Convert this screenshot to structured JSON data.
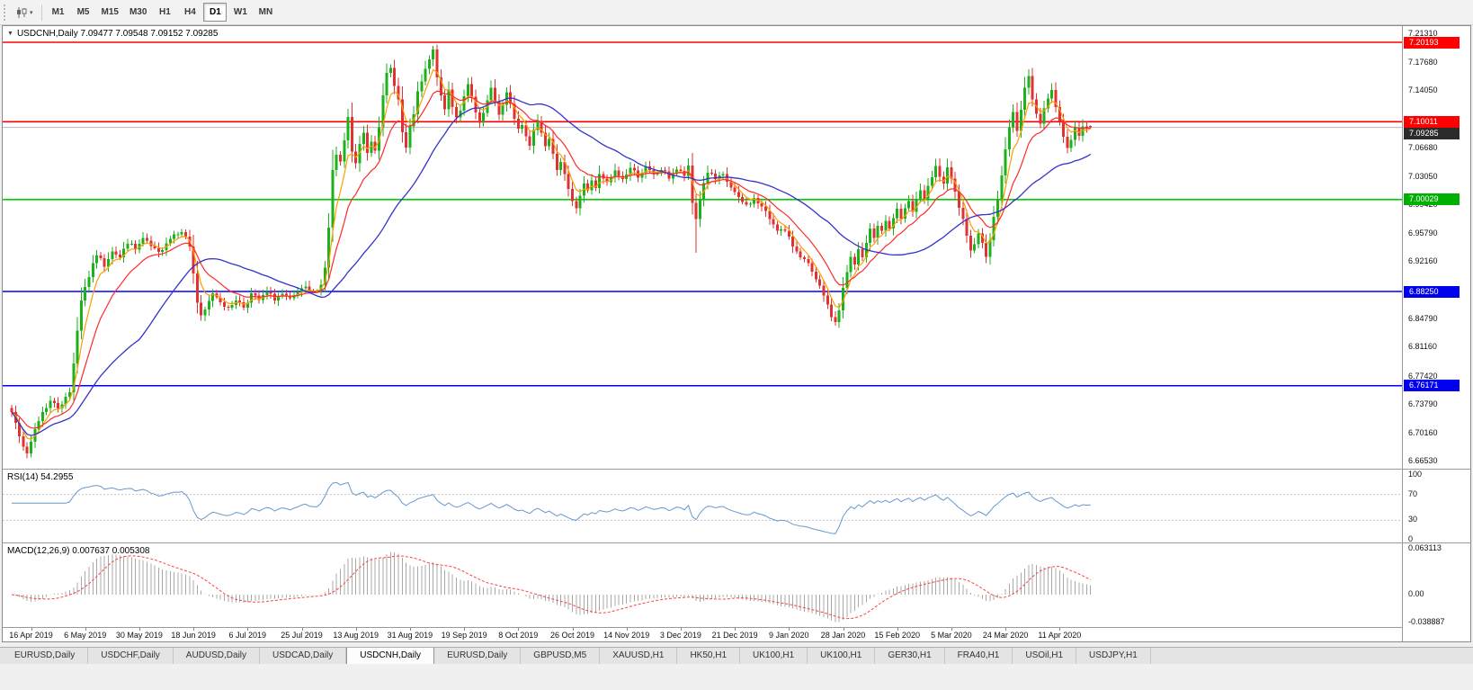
{
  "colors": {
    "up": "#1cb21c",
    "down": "#e03232",
    "ma_fast": "#ff9d00",
    "ma_mid": "#ff2a2a",
    "ma_slow": "#3434cc",
    "rsi_line": "#6699cc",
    "rsi_levels": "#c8c8c8",
    "macd_hist": "#a8a8a8",
    "macd_signal": "#ff4040",
    "current_line": "#b4b4b4"
  },
  "toolbar": {
    "timeframes": [
      "M1",
      "M5",
      "M15",
      "M30",
      "H1",
      "H4",
      "D1",
      "W1",
      "MN"
    ],
    "selected": "D1"
  },
  "chart": {
    "collapse_icon": "▼",
    "title_full": "USDCNH,Daily 7.09477 7.09548 7.09152 7.09285"
  },
  "price_axis": {
    "ticks": [
      "7.21310",
      "7.17680",
      "7.14050",
      "7.06680",
      "7.03050",
      "6.99420",
      "6.95790",
      "6.92160",
      "6.84790",
      "6.81160",
      "6.77420",
      "6.73790",
      "6.70160",
      "6.66530"
    ],
    "badges": [
      {
        "text": "7.20193",
        "bg": "#ff0000"
      },
      {
        "text": "7.10011",
        "bg": "#ff0000"
      },
      {
        "text": "7.09285",
        "bg": "#2b2b2b"
      },
      {
        "text": "7.00029",
        "bg": "#00b000"
      },
      {
        "text": "6.88250",
        "bg": "#0000ee"
      },
      {
        "text": "6.76171",
        "bg": "#0000ee"
      }
    ]
  },
  "indicators": {
    "rsi": {
      "text": "RSI(14) 54.2955",
      "axis": [
        "100",
        "70",
        "30",
        "0"
      ]
    },
    "macd": {
      "text": "MACD(12,26,9) 0.007637 0.005308",
      "axis": [
        "0.063113",
        "0.00",
        "-0.038887"
      ]
    }
  },
  "tabs": [
    {
      "label": "EURUSD,Daily"
    },
    {
      "label": "USDCHF,Daily"
    },
    {
      "label": "AUDUSD,Daily"
    },
    {
      "label": "USDCAD,Daily"
    },
    {
      "label": "USDCNH,Daily",
      "active": true
    },
    {
      "label": "EURUSD,Daily"
    },
    {
      "label": "GBPUSD,M5"
    },
    {
      "label": "XAUUSD,H1"
    },
    {
      "label": "HK50,H1"
    },
    {
      "label": "UK100,H1"
    },
    {
      "label": "UK100,H1"
    },
    {
      "label": "GER30,H1"
    },
    {
      "label": "FRA40,H1"
    },
    {
      "label": "USOil,H1"
    },
    {
      "label": "USDJPY,H1"
    }
  ],
  "chart_data": {
    "type": "candlestick",
    "symbol": "USDCNH",
    "timeframe": "Daily",
    "last_bar_ohlc": {
      "open": 7.09477,
      "high": 7.09548,
      "low": 7.09152,
      "close": 7.09285
    },
    "price_axis_range": [
      6.6653,
      7.2131
    ],
    "bars": 280,
    "close_waypoints": [
      [
        0,
        6.728
      ],
      [
        2,
        6.7
      ],
      [
        4,
        6.672
      ],
      [
        6,
        6.706
      ],
      [
        8,
        6.728
      ],
      [
        10,
        6.742
      ],
      [
        12,
        6.734
      ],
      [
        14,
        6.746
      ],
      [
        15,
        6.753
      ],
      [
        16,
        6.792
      ],
      [
        17,
        6.833
      ],
      [
        18,
        6.872
      ],
      [
        19,
        6.888
      ],
      [
        20,
        6.902
      ],
      [
        21,
        6.916
      ],
      [
        22,
        6.93
      ],
      [
        24,
        6.916
      ],
      [
        26,
        6.936
      ],
      [
        28,
        6.926
      ],
      [
        30,
        6.946
      ],
      [
        32,
        6.936
      ],
      [
        34,
        6.95
      ],
      [
        36,
        6.94
      ],
      [
        38,
        6.931
      ],
      [
        40,
        6.946
      ],
      [
        42,
        6.956
      ],
      [
        44,
        6.961
      ],
      [
        46,
        6.941
      ],
      [
        47,
        6.906
      ],
      [
        48,
        6.868
      ],
      [
        49,
        6.849
      ],
      [
        50,
        6.858
      ],
      [
        52,
        6.881
      ],
      [
        54,
        6.871
      ],
      [
        56,
        6.859
      ],
      [
        58,
        6.873
      ],
      [
        60,
        6.863
      ],
      [
        62,
        6.879
      ],
      [
        64,
        6.871
      ],
      [
        66,
        6.881
      ],
      [
        68,
        6.873
      ],
      [
        70,
        6.879
      ],
      [
        72,
        6.871
      ],
      [
        74,
        6.881
      ],
      [
        76,
        6.886
      ],
      [
        78,
        6.881
      ],
      [
        80,
        6.891
      ],
      [
        81,
        6.914
      ],
      [
        82,
        6.963
      ],
      [
        83,
        7.038
      ],
      [
        84,
        7.056
      ],
      [
        85,
        7.046
      ],
      [
        86,
        7.076
      ],
      [
        87,
        7.104
      ],
      [
        88,
        7.062
      ],
      [
        89,
        7.046
      ],
      [
        90,
        7.07
      ],
      [
        91,
        7.086
      ],
      [
        92,
        7.061
      ],
      [
        93,
        7.076
      ],
      [
        94,
        7.066
      ],
      [
        95,
        7.096
      ],
      [
        96,
        7.131
      ],
      [
        97,
        7.161
      ],
      [
        98,
        7.168
      ],
      [
        99,
        7.149
      ],
      [
        100,
        7.128
      ],
      [
        101,
        7.086
      ],
      [
        102,
        7.066
      ],
      [
        103,
        7.091
      ],
      [
        104,
        7.111
      ],
      [
        105,
        7.136
      ],
      [
        106,
        7.151
      ],
      [
        107,
        7.166
      ],
      [
        108,
        7.179
      ],
      [
        109,
        7.191
      ],
      [
        110,
        7.159
      ],
      [
        111,
        7.131
      ],
      [
        112,
        7.116
      ],
      [
        113,
        7.141
      ],
      [
        114,
        7.121
      ],
      [
        115,
        7.106
      ],
      [
        116,
        7.116
      ],
      [
        117,
        7.131
      ],
      [
        118,
        7.146
      ],
      [
        119,
        7.131
      ],
      [
        120,
        7.111
      ],
      [
        121,
        7.096
      ],
      [
        122,
        7.111
      ],
      [
        123,
        7.126
      ],
      [
        124,
        7.141
      ],
      [
        125,
        7.126
      ],
      [
        126,
        7.111
      ],
      [
        127,
        7.121
      ],
      [
        128,
        7.136
      ],
      [
        129,
        7.121
      ],
      [
        130,
        7.106
      ],
      [
        131,
        7.091
      ],
      [
        132,
        7.096
      ],
      [
        133,
        7.081
      ],
      [
        134,
        7.071
      ],
      [
        135,
        7.091
      ],
      [
        136,
        7.101
      ],
      [
        137,
        7.086
      ],
      [
        138,
        7.071
      ],
      [
        139,
        7.081
      ],
      [
        140,
        7.061
      ],
      [
        141,
        7.041
      ],
      [
        142,
        7.051
      ],
      [
        143,
        7.031
      ],
      [
        144,
        7.011
      ],
      [
        145,
        7.001
      ],
      [
        146,
        6.991
      ],
      [
        147,
        7.006
      ],
      [
        148,
        7.021
      ],
      [
        149,
        7.011
      ],
      [
        150,
        7.026
      ],
      [
        151,
        7.016
      ],
      [
        152,
        7.031
      ],
      [
        154,
        7.021
      ],
      [
        156,
        7.036
      ],
      [
        158,
        7.026
      ],
      [
        160,
        7.041
      ],
      [
        162,
        7.031
      ],
      [
        164,
        7.041
      ],
      [
        166,
        7.031
      ],
      [
        168,
        7.039
      ],
      [
        170,
        7.029
      ],
      [
        172,
        7.039
      ],
      [
        174,
        7.031
      ],
      [
        175,
        7.041
      ],
      [
        176,
        6.996
      ],
      [
        177,
        6.976
      ],
      [
        178,
        7.001
      ],
      [
        179,
        7.021
      ],
      [
        180,
        7.036
      ],
      [
        182,
        7.026
      ],
      [
        184,
        7.031
      ],
      [
        186,
        7.016
      ],
      [
        188,
        7.001
      ],
      [
        190,
        6.993
      ],
      [
        192,
        7.001
      ],
      [
        194,
        6.991
      ],
      [
        196,
        6.976
      ],
      [
        198,
        6.963
      ],
      [
        200,
        6.959
      ],
      [
        202,
        6.941
      ],
      [
        204,
        6.929
      ],
      [
        206,
        6.916
      ],
      [
        208,
        6.896
      ],
      [
        210,
        6.879
      ],
      [
        211,
        6.863
      ],
      [
        212,
        6.851
      ],
      [
        213,
        6.843
      ],
      [
        214,
        6.859
      ],
      [
        215,
        6.886
      ],
      [
        216,
        6.906
      ],
      [
        217,
        6.926
      ],
      [
        218,
        6.916
      ],
      [
        219,
        6.936
      ],
      [
        220,
        6.926
      ],
      [
        221,
        6.946
      ],
      [
        222,
        6.961
      ],
      [
        223,
        6.951
      ],
      [
        224,
        6.969
      ],
      [
        225,
        6.959
      ],
      [
        226,
        6.973
      ],
      [
        227,
        6.963
      ],
      [
        228,
        6.976
      ],
      [
        229,
        6.986
      ],
      [
        230,
        6.973
      ],
      [
        231,
        6.991
      ],
      [
        232,
        7.001
      ],
      [
        233,
        6.986
      ],
      [
        234,
        7.001
      ],
      [
        235,
        7.013
      ],
      [
        236,
        6.999
      ],
      [
        237,
        7.016
      ],
      [
        238,
        7.029
      ],
      [
        239,
        7.041
      ],
      [
        240,
        7.031
      ],
      [
        241,
        7.021
      ],
      [
        242,
        7.039
      ],
      [
        243,
        7.026
      ],
      [
        244,
        7.009
      ],
      [
        245,
        6.991
      ],
      [
        246,
        6.973
      ],
      [
        247,
        6.951
      ],
      [
        248,
        6.933
      ],
      [
        249,
        6.946
      ],
      [
        250,
        6.959
      ],
      [
        251,
        6.943
      ],
      [
        252,
        6.929
      ],
      [
        253,
        6.951
      ],
      [
        254,
        6.976
      ],
      [
        255,
        7.001
      ],
      [
        256,
        7.031
      ],
      [
        257,
        7.066
      ],
      [
        258,
        7.091
      ],
      [
        259,
        7.111
      ],
      [
        260,
        7.091
      ],
      [
        261,
        7.116
      ],
      [
        262,
        7.141
      ],
      [
        263,
        7.161
      ],
      [
        264,
        7.131
      ],
      [
        265,
        7.111
      ],
      [
        266,
        7.096
      ],
      [
        267,
        7.116
      ],
      [
        268,
        7.131
      ],
      [
        269,
        7.141
      ],
      [
        270,
        7.121
      ],
      [
        271,
        7.101
      ],
      [
        272,
        7.081
      ],
      [
        273,
        7.066
      ],
      [
        274,
        7.079
      ],
      [
        275,
        7.091
      ],
      [
        276,
        7.083
      ],
      [
        277,
        7.093
      ],
      [
        278,
        7.089
      ],
      [
        279,
        7.09285
      ]
    ],
    "long_wicks": [
      {
        "bar": 109,
        "high": 7.1975
      },
      {
        "bar": 177,
        "low": 6.932
      },
      {
        "bar": 214,
        "low": 6.836
      }
    ],
    "levels": [
      {
        "price": 7.20193,
        "color": "#ff0000"
      },
      {
        "price": 7.10011,
        "color": "#ff0000"
      },
      {
        "price": 7.00029,
        "color": "#00cc00"
      },
      {
        "price": 6.8825,
        "color": "#0000ff"
      },
      {
        "price": 6.76171,
        "color": "#0000ff"
      }
    ],
    "current_price": 7.09285,
    "moving_averages": [
      {
        "type": "ema",
        "period": 5,
        "color_key": "ma_fast"
      },
      {
        "type": "ema",
        "period": 13,
        "color_key": "ma_mid"
      },
      {
        "type": "sma",
        "period": 34,
        "color_key": "ma_slow"
      }
    ],
    "rsi": {
      "period": 14,
      "current": 54.2955,
      "levels": [
        70,
        30
      ],
      "range": [
        0,
        100
      ]
    },
    "macd": {
      "fast": 12,
      "slow": 26,
      "signal": 9,
      "current_main": 0.007637,
      "current_signal": 0.005308,
      "axis_max": 0.063113,
      "axis_min": -0.038887
    },
    "date_labels": [
      {
        "bar": 5,
        "text": "16 Apr 2019"
      },
      {
        "bar": 19,
        "text": "6 May 2019"
      },
      {
        "bar": 33,
        "text": "30 May 2019"
      },
      {
        "bar": 47,
        "text": "18 Jun 2019"
      },
      {
        "bar": 61,
        "text": "6 Jul 2019"
      },
      {
        "bar": 75,
        "text": "25 Jul 2019"
      },
      {
        "bar": 89,
        "text": "13 Aug 2019"
      },
      {
        "bar": 103,
        "text": "31 Aug 2019"
      },
      {
        "bar": 117,
        "text": "19 Sep 2019"
      },
      {
        "bar": 131,
        "text": "8 Oct 2019"
      },
      {
        "bar": 145,
        "text": "26 Oct 2019"
      },
      {
        "bar": 159,
        "text": "14 Nov 2019"
      },
      {
        "bar": 173,
        "text": "3 Dec 2019"
      },
      {
        "bar": 187,
        "text": "21 Dec 2019"
      },
      {
        "bar": 201,
        "text": "9 Jan 2020"
      },
      {
        "bar": 215,
        "text": "28 Jan 2020"
      },
      {
        "bar": 229,
        "text": "15 Feb 2020"
      },
      {
        "bar": 243,
        "text": "5 Mar 2020"
      },
      {
        "bar": 257,
        "text": "24 Mar 2020"
      },
      {
        "bar": 271,
        "text": "11 Apr 2020"
      }
    ]
  }
}
